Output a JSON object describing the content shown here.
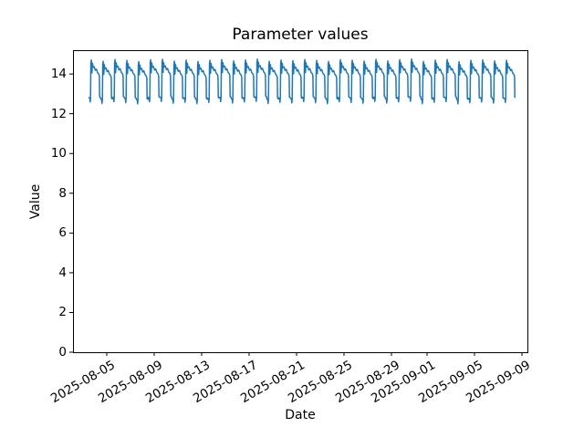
{
  "figure": {
    "background": "#ffffff",
    "text_color": "#000000"
  },
  "chart_data": {
    "type": "line",
    "title": "Parameter values",
    "xlabel": "Date",
    "ylabel": "Value",
    "line_color": "#1f77b4",
    "grid": false,
    "legend": null,
    "ylim": [
      0,
      15.2
    ],
    "y_ticks": [
      0,
      2,
      4,
      6,
      8,
      10,
      12,
      14
    ],
    "x_tick_ref_date": "2025-08-05",
    "x_ticks": [
      {
        "label": "2025-08-05",
        "day": 0
      },
      {
        "label": "2025-08-09",
        "day": 4
      },
      {
        "label": "2025-08-13",
        "day": 8
      },
      {
        "label": "2025-08-17",
        "day": 12
      },
      {
        "label": "2025-08-21",
        "day": 16
      },
      {
        "label": "2025-08-25",
        "day": 20
      },
      {
        "label": "2025-08-29",
        "day": 24
      },
      {
        "label": "2025-09-01",
        "day": 27
      },
      {
        "label": "2025-09-05",
        "day": 31
      },
      {
        "label": "2025-09-09",
        "day": 35
      }
    ],
    "series": [
      {
        "name": "parameter",
        "description": "Daily repeating cycle: low ~12.6-12.8, sharp rise to ~14.5-14.7 double peak with notch, slowly declining plateau to ~13.9, sharp drop back to low",
        "start_day": -1.5,
        "end_day": 34.4,
        "n_cycles": 36,
        "value_low": 12.6,
        "value_high": 14.7,
        "cycle_template": [
          [
            0.0,
            12.78
          ],
          [
            0.07,
            12.76
          ],
          [
            0.1,
            12.56
          ],
          [
            0.13,
            12.74
          ],
          [
            0.16,
            14.52
          ],
          [
            0.2,
            14.68
          ],
          [
            0.245,
            14.02
          ],
          [
            0.29,
            14.52
          ],
          [
            0.35,
            14.3
          ],
          [
            0.44,
            14.34
          ],
          [
            0.53,
            14.16
          ],
          [
            0.62,
            14.22
          ],
          [
            0.72,
            14.04
          ],
          [
            0.82,
            13.97
          ],
          [
            0.875,
            13.86
          ],
          [
            0.9,
            12.82
          ],
          [
            0.97,
            12.79
          ]
        ],
        "cycle_jitter": [
          0.03,
          -0.04,
          0.05,
          0.0,
          -0.06,
          0.04,
          0.06,
          -0.03,
          0.02,
          -0.05,
          0.01,
          0.05,
          -0.02,
          0.03,
          0.07,
          -0.04,
          0.02,
          -0.01,
          0.05,
          0.0,
          -0.05,
          0.04,
          0.01,
          -0.03,
          0.06,
          -0.02,
          0.04,
          0.07,
          -0.05,
          0.02,
          0.05,
          -0.06,
          0.0,
          0.03,
          -0.02,
          0.01
        ]
      }
    ]
  }
}
